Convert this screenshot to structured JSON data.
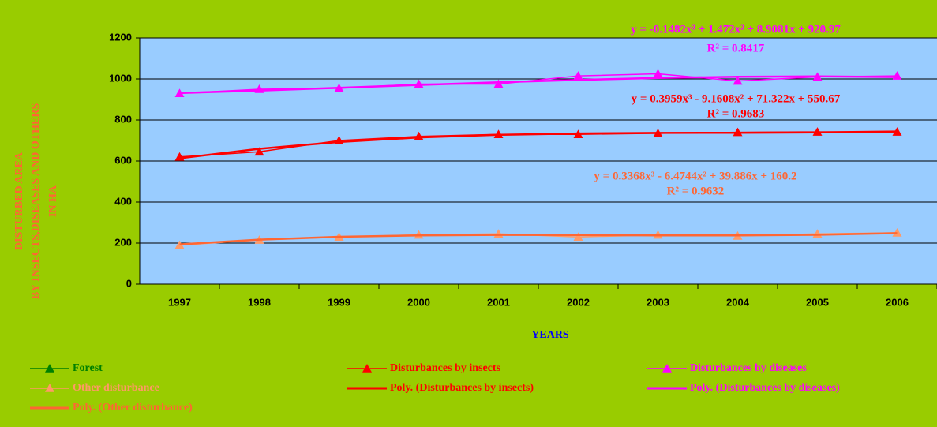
{
  "chart_data": {
    "type": "line",
    "y_title_lines": [
      "DISTURBED AREA",
      "BY INSECTS,DISEASES AND OTHERS",
      "IN HA"
    ],
    "x_title": "YEARS",
    "categories": [
      "1997",
      "1998",
      "1999",
      "2000",
      "2001",
      "2002",
      "2003",
      "2004",
      "2005",
      "2006"
    ],
    "ylim": [
      0,
      1200
    ],
    "yticks": [
      0,
      200,
      400,
      600,
      800,
      1000,
      1200
    ],
    "grid": true,
    "series": [
      {
        "name": "Forest",
        "color": "#008000",
        "marker": "triangle",
        "values": [
          null,
          null,
          null,
          null,
          null,
          null,
          null,
          null,
          null,
          null
        ]
      },
      {
        "name": "Disturbances by insects",
        "color": "#ff0000",
        "marker": "triangle",
        "values": [
          620,
          645,
          700,
          720,
          730,
          730,
          735,
          740,
          742,
          742
        ]
      },
      {
        "name": "Disturbances by diseases",
        "color": "#ff00ff",
        "marker": "triangle",
        "values": [
          930,
          950,
          955,
          975,
          975,
          1015,
          1025,
          990,
          1010,
          1015
        ]
      },
      {
        "name": "Other disturbance",
        "color": "#ff9966",
        "marker": "triangle",
        "values": [
          190,
          215,
          230,
          240,
          245,
          230,
          240,
          235,
          245,
          250
        ]
      },
      {
        "name": "Poly. (Disturbances by insects)",
        "color": "#ff0000",
        "marker": "none",
        "values": [
          613.2,
          659.8,
          692.9,
          714.7,
          727.8,
          734.3,
          736.8,
          737.7,
          739.2,
          743.7
        ]
      },
      {
        "name": "Poly. (Disturbances by diseases)",
        "color": "#ff00ff",
        "marker": "none",
        "values": [
          931.2,
          943.5,
          956.9,
          970.7,
          983.8,
          995.4,
          1004.6,
          1010.6,
          1012.3,
          1009.1
        ]
      },
      {
        "name": "Poly. (Other disturbance)",
        "color": "#ff6633",
        "marker": "none",
        "values": [
          193.9,
          216.8,
          230.7,
          237.7,
          239.9,
          239.2,
          237.7,
          237.4,
          240.3,
          248.4
        ]
      }
    ],
    "annotations": [
      {
        "equation": "y = -0.1482x³ + 1.472x² + 8.9081x + 920.97",
        "r2": "R² = 0.8417",
        "color": "#ff00ff"
      },
      {
        "equation": "y = 0.3959x³ - 9.1608x² + 71.322x + 550.67",
        "r2": "R² = 0.9683",
        "color": "#ff0000"
      },
      {
        "equation": "y = 0.3368x³ - 6.4744x² + 39.886x + 160.2",
        "r2": "R² = 0.9632",
        "color": "#ff6633"
      }
    ]
  }
}
